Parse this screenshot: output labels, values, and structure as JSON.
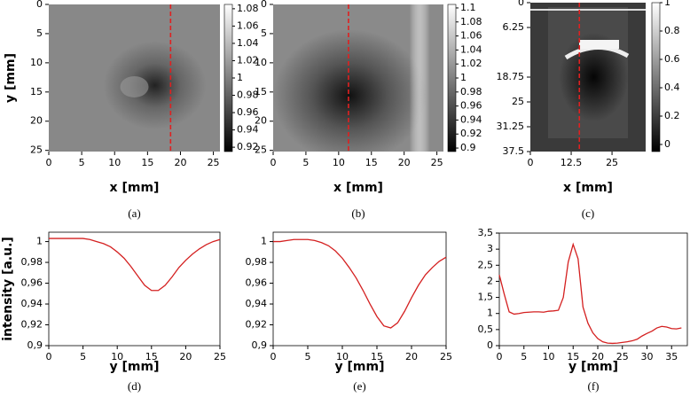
{
  "chart_data": [
    {
      "type": "image",
      "caption": "(a)",
      "xlabel": "x [mm]",
      "ylabel": "y [mm]",
      "xlim": [
        0,
        26
      ],
      "ylim": [
        0,
        25.2
      ],
      "xticks": [
        0,
        5,
        10,
        15,
        20,
        25
      ],
      "yticks": [
        0,
        5,
        10,
        15,
        20,
        25
      ],
      "clim": [
        0.915,
        1.085
      ],
      "cticks": [
        0.92,
        0.94,
        0.96,
        0.98,
        1,
        1.02,
        1.04,
        1.06,
        1.08
      ],
      "cut_x": 18.5,
      "cut_color": "#e02020"
    },
    {
      "type": "image",
      "caption": "(b)",
      "xlabel": "x [mm]",
      "xlim": [
        0,
        26
      ],
      "ylim": [
        0,
        25.2
      ],
      "xticks": [
        0,
        5,
        10,
        15,
        20,
        25
      ],
      "yticks": [
        0,
        5,
        10,
        15,
        20,
        25
      ],
      "clim": [
        0.895,
        1.105
      ],
      "cticks": [
        0.9,
        0.92,
        0.94,
        0.96,
        0.98,
        1,
        1.02,
        1.04,
        1.06,
        1.08,
        1.1
      ],
      "cut_x": 11.5,
      "cut_color": "#e02020"
    },
    {
      "type": "image",
      "caption": "(c)",
      "xlabel": "x [mm]",
      "xlim": [
        0,
        35.3
      ],
      "ylim": [
        0,
        37.5
      ],
      "xticks": [
        0,
        12.5,
        25
      ],
      "yticks": [
        0,
        6.25,
        18.75,
        25,
        31.25,
        37.5
      ],
      "clim": [
        -0.05,
        1.0
      ],
      "cticks": [
        0,
        0.2,
        0.4,
        0.6,
        0.8,
        1
      ],
      "cut_x": 15,
      "cut_color": "#e02020"
    },
    {
      "type": "line",
      "caption": "(d)",
      "xlabel": "y [mm]",
      "ylabel": "intensity [a.u.]",
      "xlim": [
        0,
        25
      ],
      "ylim": [
        0.9,
        1.009
      ],
      "xticks": [
        0,
        5,
        10,
        15,
        20,
        25
      ],
      "yticks": [
        {
          "value": 0.9,
          "label": "0,9"
        },
        {
          "value": 0.92,
          "label": "0,92"
        },
        {
          "value": 0.94,
          "label": "0,94"
        },
        {
          "value": 0.96,
          "label": "0,96"
        },
        {
          "value": 0.98,
          "label": "0,98"
        },
        1
      ],
      "series": [
        {
          "color": "#d42020",
          "x": [
            0,
            1,
            2,
            3,
            4,
            5,
            6,
            7,
            8,
            9,
            10,
            11,
            12,
            13,
            14,
            15,
            16,
            17,
            18,
            19,
            20,
            21,
            22,
            23,
            24,
            25
          ],
          "values": [
            1.003,
            1.003,
            1.003,
            1.003,
            1.003,
            1.003,
            1.002,
            1.0,
            0.998,
            0.995,
            0.99,
            0.984,
            0.976,
            0.967,
            0.958,
            0.953,
            0.953,
            0.958,
            0.966,
            0.975,
            0.982,
            0.988,
            0.993,
            0.997,
            1.0,
            1.002
          ]
        }
      ]
    },
    {
      "type": "line",
      "caption": "(e)",
      "xlabel": "y [mm]",
      "xlim": [
        0,
        25
      ],
      "ylim": [
        0.9,
        1.009
      ],
      "xticks": [
        0,
        5,
        10,
        15,
        20,
        25
      ],
      "yticks": [
        {
          "value": 0.9,
          "label": "0,9"
        },
        {
          "value": 0.92,
          "label": "0,92"
        },
        {
          "value": 0.94,
          "label": "0,94"
        },
        {
          "value": 0.96,
          "label": "0,96"
        },
        {
          "value": 0.98,
          "label": "0,98"
        },
        1
      ],
      "series": [
        {
          "color": "#d42020",
          "x": [
            0,
            1,
            2,
            3,
            4,
            5,
            6,
            7,
            8,
            9,
            10,
            11,
            12,
            13,
            14,
            15,
            16,
            17,
            18,
            19,
            20,
            21,
            22,
            23,
            24,
            25
          ],
          "values": [
            1.0,
            1.0,
            1.001,
            1.002,
            1.002,
            1.002,
            1.001,
            0.999,
            0.996,
            0.991,
            0.984,
            0.975,
            0.965,
            0.953,
            0.94,
            0.928,
            0.919,
            0.917,
            0.922,
            0.933,
            0.946,
            0.958,
            0.968,
            0.975,
            0.981,
            0.985
          ]
        }
      ]
    },
    {
      "type": "line",
      "caption": "(f)",
      "xlabel": "y [mm]",
      "xlim": [
        0,
        38.2
      ],
      "ylim": [
        0,
        3.5
      ],
      "xticks": [
        0,
        5,
        10,
        15,
        20,
        25,
        30,
        35
      ],
      "yticks": [
        0,
        {
          "value": 0.5,
          "label": "0,5"
        },
        1,
        {
          "value": 1.5,
          "label": "1,5"
        },
        2,
        {
          "value": 2.5,
          "label": "2,5"
        },
        3,
        {
          "value": 3.5,
          "label": "3,5"
        }
      ],
      "series": [
        {
          "color": "#d42020",
          "x": [
            0,
            1,
            2,
            3,
            4,
            5,
            6,
            7,
            8,
            9,
            10,
            11,
            12,
            13,
            14,
            15,
            16,
            17,
            18,
            19,
            20,
            21,
            22,
            23,
            24,
            25,
            26,
            27,
            28,
            29,
            30,
            31,
            32,
            33,
            34,
            35,
            36,
            37
          ],
          "values": [
            2.2,
            1.6,
            1.05,
            0.98,
            1.0,
            1.03,
            1.04,
            1.05,
            1.05,
            1.04,
            1.07,
            1.08,
            1.1,
            1.5,
            2.6,
            3.15,
            2.7,
            1.2,
            0.7,
            0.4,
            0.22,
            0.12,
            0.08,
            0.07,
            0.08,
            0.1,
            0.12,
            0.15,
            0.2,
            0.3,
            0.38,
            0.45,
            0.55,
            0.6,
            0.58,
            0.53,
            0.52,
            0.55
          ]
        }
      ]
    }
  ]
}
